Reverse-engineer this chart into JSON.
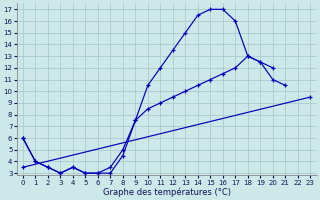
{
  "xlabel": "Graphe des températures (°C)",
  "bg_color": "#cce8e8",
  "grid_color": "#aacccc",
  "line_color": "#0000bb",
  "xlim": [
    -0.5,
    23.5
  ],
  "ylim": [
    2.8,
    17.5
  ],
  "yticks": [
    3,
    4,
    5,
    6,
    7,
    8,
    9,
    10,
    11,
    12,
    13,
    14,
    15,
    16,
    17
  ],
  "xticks": [
    0,
    1,
    2,
    3,
    4,
    5,
    6,
    7,
    8,
    9,
    10,
    11,
    12,
    13,
    14,
    15,
    16,
    17,
    18,
    19,
    20,
    21,
    22,
    23
  ],
  "curve1": {
    "x": [
      0,
      1,
      2,
      3,
      4,
      5,
      6,
      7,
      8,
      9,
      10,
      11,
      12,
      13,
      14,
      15,
      16,
      17,
      18,
      19,
      20,
      21
    ],
    "y": [
      6.0,
      4.0,
      3.5,
      3.0,
      3.5,
      3.0,
      3.0,
      3.0,
      4.5,
      7.5,
      10.5,
      12.0,
      13.5,
      15.0,
      16.5,
      17.0,
      17.0,
      16.0,
      13.0,
      12.5,
      11.0,
      10.5
    ]
  },
  "curve2": {
    "x": [
      0,
      1,
      2,
      3,
      4,
      5,
      6,
      7,
      8,
      9,
      10,
      11,
      12,
      13,
      14,
      15,
      16,
      17,
      18,
      19,
      20
    ],
    "y": [
      6.0,
      4.0,
      3.5,
      3.0,
      3.5,
      3.0,
      3.0,
      3.5,
      5.0,
      7.5,
      8.5,
      9.0,
      9.5,
      10.0,
      10.5,
      11.0,
      11.5,
      12.0,
      13.0,
      12.5,
      12.0
    ]
  },
  "curve3": {
    "x": [
      0,
      23
    ],
    "y": [
      3.5,
      9.5
    ]
  },
  "xlabel_fontsize": 6,
  "tick_fontsize": 5
}
